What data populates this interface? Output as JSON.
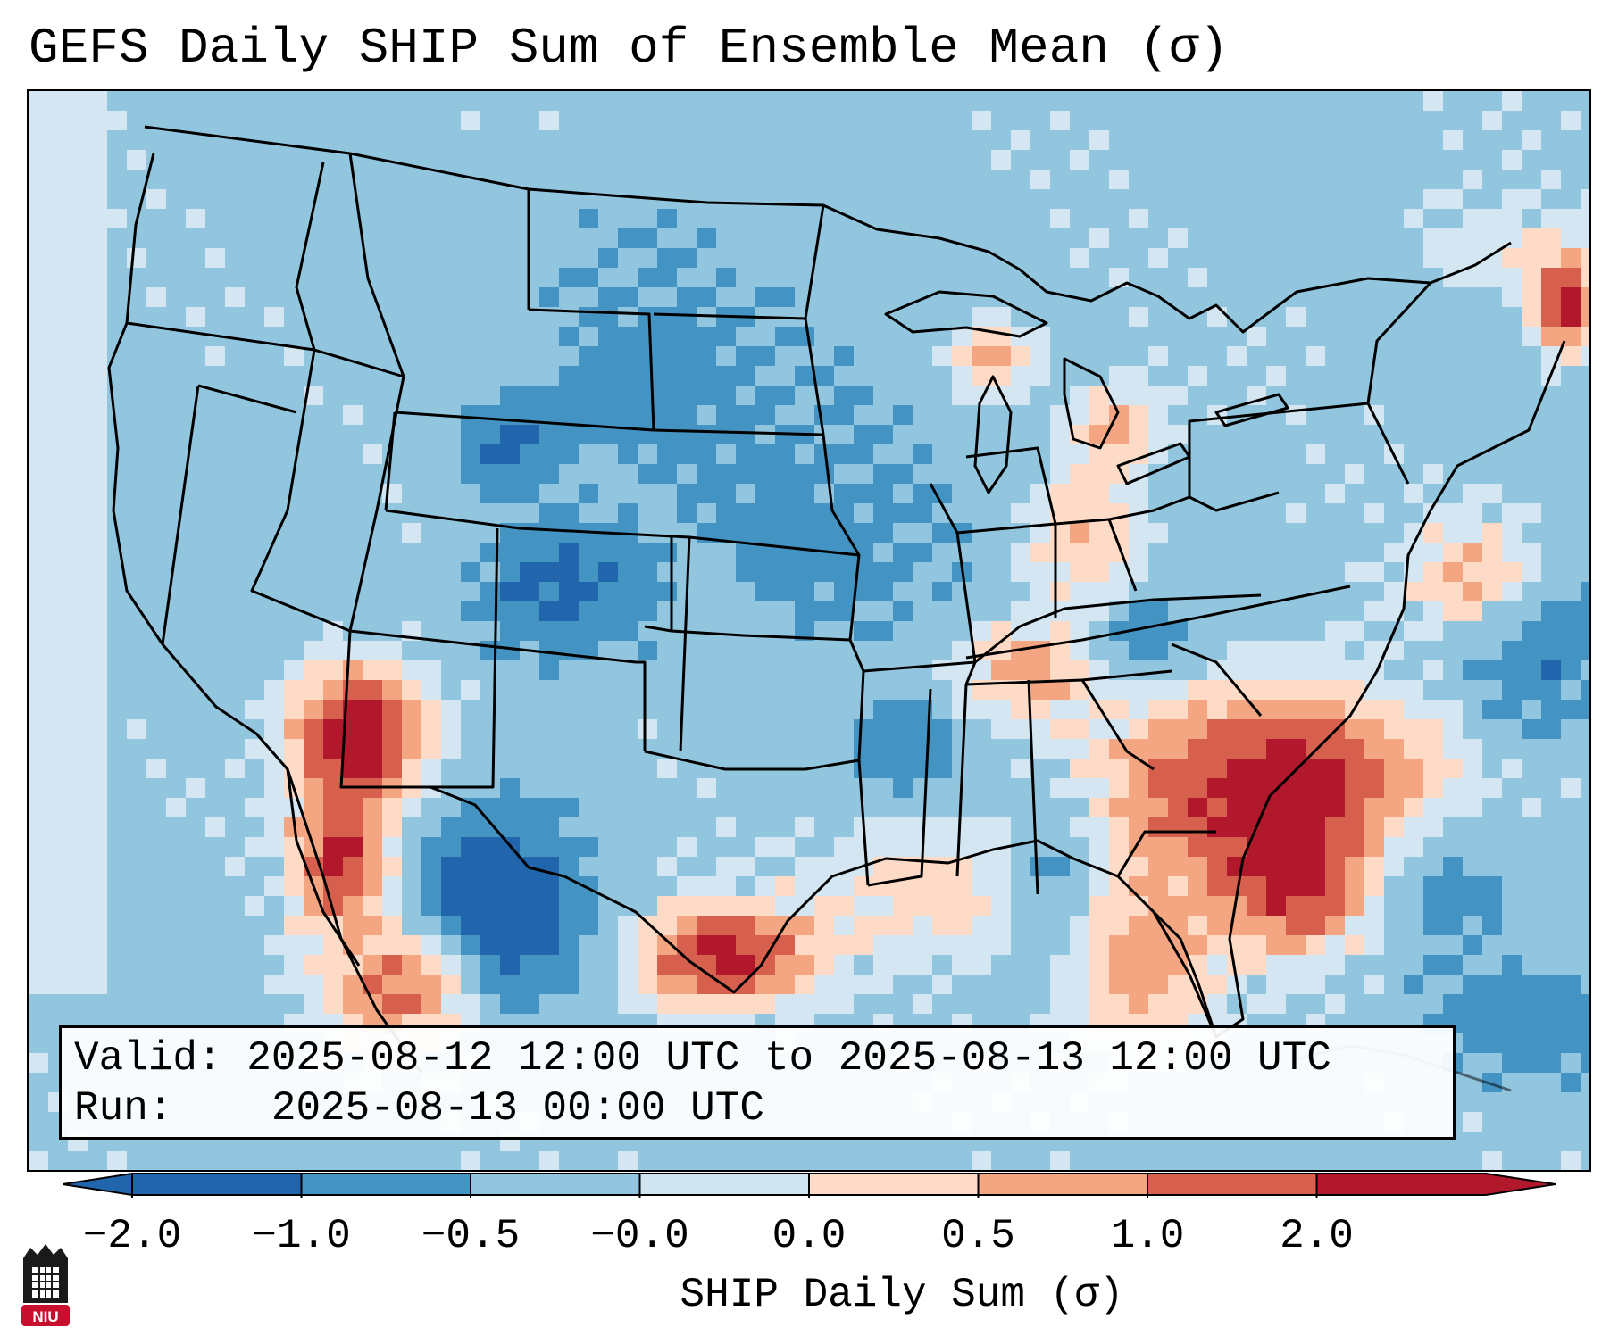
{
  "title": "GEFS Daily SHIP Sum of Ensemble Mean (σ)",
  "info": {
    "valid_label": "Valid:",
    "valid_value": "2025-08-12 12:00 UTC to 2025-08-13 12:00 UTC",
    "run_label": "Run:",
    "run_value": "2025-08-13 00:00 UTC"
  },
  "colorbar": {
    "label": "SHIP Daily Sum (σ)",
    "ticks": [
      "−2.0",
      "−1.0",
      "−0.5",
      "−0.0",
      "0.0",
      "0.5",
      "1.0",
      "2.0"
    ],
    "colors": [
      "#2166ac",
      "#4393c3",
      "#92c5de",
      "#d1e5f0",
      "#fddbc7",
      "#f4a582",
      "#d6604d",
      "#b2182b"
    ],
    "extend": "both"
  },
  "logo": {
    "text": "NIU",
    "color": "#c8102e"
  }
}
